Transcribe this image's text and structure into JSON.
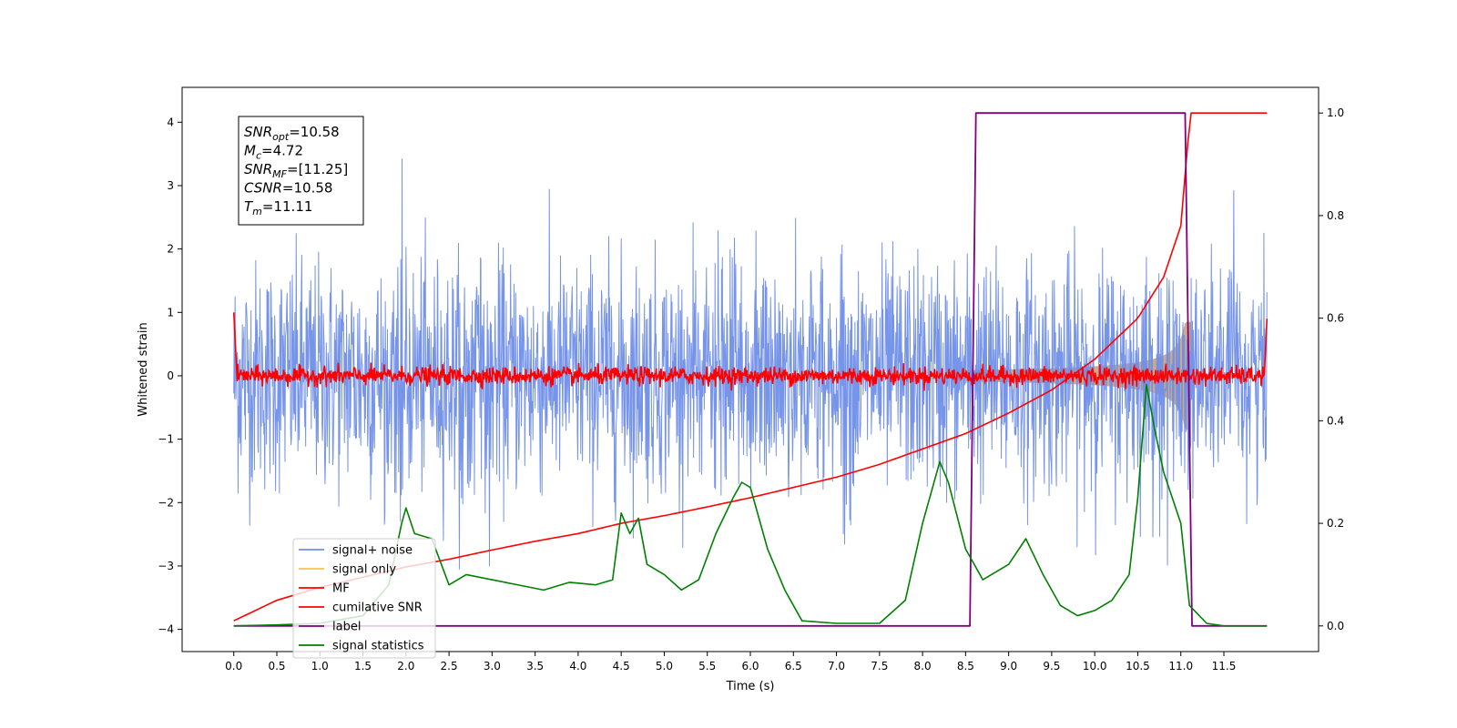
{
  "chart_data": {
    "type": "line",
    "xlabel": "Time (s)",
    "ylabel": "Whitened strain",
    "xlim": [
      -0.6,
      12.6
    ],
    "ylim_left": [
      -4.35,
      4.55
    ],
    "ylim_right": [
      -0.05,
      1.05
    ],
    "x_ticks": [
      0.0,
      0.5,
      1.0,
      1.5,
      2.0,
      2.5,
      3.0,
      3.5,
      4.0,
      4.5,
      5.0,
      5.5,
      6.0,
      6.5,
      7.0,
      7.5,
      8.0,
      8.5,
      9.0,
      9.5,
      10.0,
      10.5,
      11.0,
      11.5
    ],
    "y_ticks_left": [
      -4,
      -3,
      -2,
      -1,
      0,
      1,
      2,
      3,
      4
    ],
    "y_ticks_right": [
      0.0,
      0.2,
      0.4,
      0.6,
      0.8,
      1.0
    ],
    "grid": false,
    "legend_position": "lower-left",
    "colors": {
      "noise": "#6f8ee8",
      "signal_only": "#ffc04d",
      "signal_fill": "#c9a27a",
      "mf": "#ff0000",
      "cumulative": "#ff0000",
      "label": "#800080",
      "stats": "#008000"
    },
    "series": [
      {
        "name": "signal+ noise",
        "key": "noise",
        "axis": "left",
        "amplitude_sigma": 0.9,
        "x_range": [
          0.0,
          12.0
        ]
      },
      {
        "name": "signal only",
        "key": "signal_only",
        "axis": "left",
        "chirp_start": 8.5,
        "chirp_end": 11.11,
        "peak_amplitude": 0.85
      },
      {
        "name": "MF",
        "key": "mf",
        "axis": "left",
        "x_range": [
          0.0,
          12.0
        ],
        "level": 0.0
      },
      {
        "name": "cumilative SNR",
        "key": "cumulative",
        "axis": "right",
        "x": [
          0.0,
          0.5,
          1.0,
          1.5,
          2.0,
          2.5,
          3.0,
          3.5,
          4.0,
          4.5,
          5.0,
          5.5,
          6.0,
          6.5,
          7.0,
          7.5,
          8.0,
          8.5,
          9.0,
          9.5,
          10.0,
          10.5,
          10.8,
          11.0,
          11.11,
          12.0
        ],
        "y": [
          0.01,
          0.05,
          0.075,
          0.095,
          0.115,
          0.13,
          0.148,
          0.165,
          0.18,
          0.2,
          0.215,
          0.232,
          0.25,
          0.27,
          0.29,
          0.315,
          0.345,
          0.375,
          0.415,
          0.46,
          0.52,
          0.6,
          0.68,
          0.78,
          1.0,
          1.0
        ]
      },
      {
        "name": "label",
        "key": "label",
        "axis": "right",
        "x": [
          0.0,
          8.55,
          8.62,
          11.05,
          11.13,
          12.0
        ],
        "y": [
          0.0,
          0.0,
          1.0,
          1.0,
          0.0,
          0.0
        ]
      },
      {
        "name": "signal statistics",
        "key": "stats",
        "axis": "right",
        "x": [
          0.0,
          0.5,
          1.0,
          1.5,
          1.8,
          1.95,
          2.0,
          2.1,
          2.3,
          2.5,
          2.7,
          3.0,
          3.3,
          3.6,
          3.9,
          4.2,
          4.4,
          4.5,
          4.6,
          4.7,
          4.8,
          5.0,
          5.2,
          5.4,
          5.6,
          5.8,
          5.9,
          6.0,
          6.2,
          6.4,
          6.6,
          7.0,
          7.5,
          7.8,
          8.0,
          8.2,
          8.3,
          8.5,
          8.7,
          9.0,
          9.2,
          9.4,
          9.6,
          9.8,
          10.0,
          10.2,
          10.4,
          10.5,
          10.6,
          10.7,
          10.8,
          10.9,
          11.0,
          11.1,
          11.3,
          11.5,
          12.0
        ],
        "y": [
          0.0,
          0.002,
          0.005,
          0.02,
          0.08,
          0.2,
          0.23,
          0.18,
          0.17,
          0.08,
          0.1,
          0.09,
          0.08,
          0.07,
          0.085,
          0.08,
          0.09,
          0.22,
          0.18,
          0.21,
          0.12,
          0.1,
          0.07,
          0.09,
          0.18,
          0.25,
          0.28,
          0.27,
          0.15,
          0.07,
          0.01,
          0.005,
          0.005,
          0.05,
          0.2,
          0.32,
          0.28,
          0.15,
          0.09,
          0.12,
          0.17,
          0.1,
          0.04,
          0.02,
          0.03,
          0.05,
          0.1,
          0.25,
          0.47,
          0.38,
          0.3,
          0.25,
          0.2,
          0.04,
          0.005,
          0.0,
          0.0
        ]
      }
    ],
    "annotation_lines": [
      {
        "label": "SNR",
        "subscript": "opt",
        "value": "=10.58"
      },
      {
        "label": "M",
        "subscript": "c",
        "value": "=4.72"
      },
      {
        "label": "SNR",
        "subscript": "MF",
        "value": "=[11.25]"
      },
      {
        "label": "CSNR",
        "subscript": "",
        "value": "=10.58"
      },
      {
        "label": "T",
        "subscript": "m",
        "value": "=11.11"
      }
    ]
  }
}
